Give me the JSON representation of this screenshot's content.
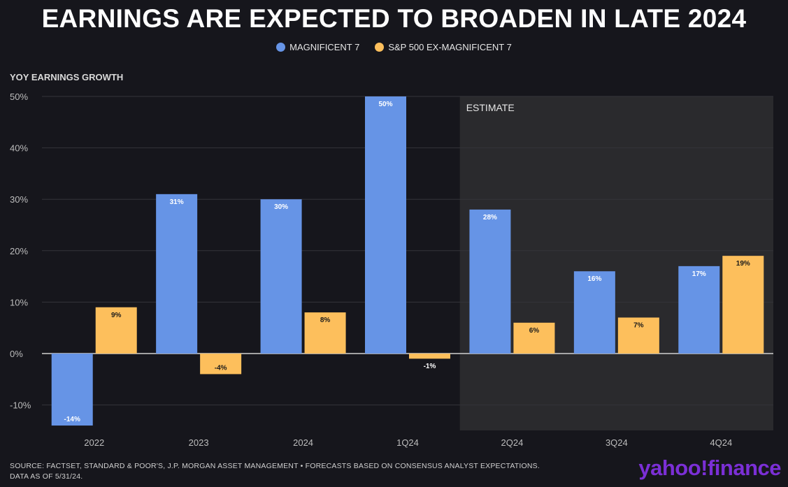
{
  "chart_data": {
    "type": "bar",
    "title": "EARNINGS ARE EXPECTED TO BROADEN IN LATE 2024",
    "ylabel": "YOY EARNINGS GROWTH",
    "xlabel": "",
    "categories": [
      "2022",
      "2023",
      "2024",
      "1Q24",
      "2Q24",
      "3Q24",
      "4Q24"
    ],
    "series": [
      {
        "name": "MAGNIFICENT 7",
        "color": "#6694e6",
        "values": [
          -14,
          31,
          30,
          50,
          28,
          16,
          17
        ],
        "labels": [
          "-14%",
          "31%",
          "30%",
          "50%",
          "28%",
          "16%",
          "17%"
        ]
      },
      {
        "name": "S&P 500 EX-MAGNIFICENT 7",
        "color": "#fdbf5c",
        "values": [
          9,
          -4,
          8,
          -1,
          6,
          7,
          19
        ],
        "labels": [
          "9%",
          "-4%",
          "8%",
          "-1%",
          "6%",
          "7%",
          "19%"
        ]
      }
    ],
    "ylim": [
      -15,
      50
    ],
    "yticks": [
      50,
      40,
      30,
      20,
      10,
      0,
      -10
    ],
    "ytick_labels": [
      "50%",
      "40%",
      "30%",
      "20%",
      "10%",
      "0%",
      "-10%"
    ],
    "grid": true,
    "estimate_label": "ESTIMATE",
    "estimate_start_category": "2Q24"
  },
  "source_line1": "SOURCE: FACTSET, STANDARD & POOR'S, J.P. MORGAN ASSET MANAGEMENT • FORECASTS BASED ON CONSENSUS ANALYST EXPECTATIONS.",
  "source_line2": "DATA AS OF 5/31/24.",
  "brand": "yahoo!finance"
}
